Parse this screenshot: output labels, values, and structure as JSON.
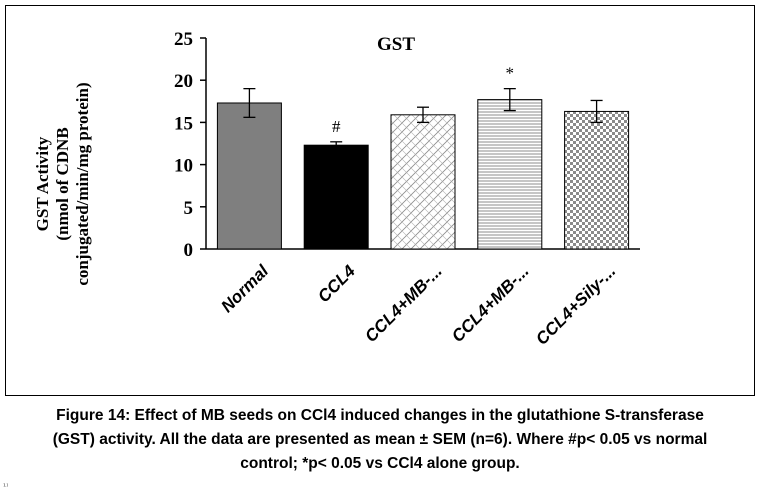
{
  "chart_data": {
    "type": "bar",
    "title": "GST",
    "ylabel": [
      "GST Activity",
      "(nmol of CDNB",
      "conjugated/min/mg protein)"
    ],
    "xlabel": "",
    "ylim": [
      0,
      25
    ],
    "yticks": [
      0,
      5,
      10,
      15,
      20,
      25
    ],
    "categories": [
      "Normal",
      "CCL4",
      "CCL4+MB-...",
      "CCL4+MB-...",
      "CCL4+Sily-..."
    ],
    "values": [
      17.3,
      12.3,
      15.9,
      17.7,
      16.3
    ],
    "errors": [
      1.7,
      0.4,
      0.9,
      1.3,
      1.3
    ],
    "annotations": [
      "",
      "#",
      "",
      "*",
      ""
    ],
    "fills": [
      "gray-solid",
      "black-solid",
      "diagonal-crosshatch",
      "horizontal-lines",
      "checkerboard"
    ]
  },
  "caption": {
    "line1": "Figure 14: Effect of MB seeds on CCl4 induced changes in the glutathione S-transferase",
    "line2": "(GST) activity. All the data are presented as mean ± SEM (n=6). Where #p< 0.05 vs normal",
    "line3": "control; *p< 0.05 vs CCl4 alone group."
  },
  "corner_mark": "¹⁾",
  "colors": {
    "normal_bar": "#7f7f7f",
    "ccl4_bar": "#000000",
    "pattern_line": "#8c8c8c",
    "axis": "#000000"
  }
}
